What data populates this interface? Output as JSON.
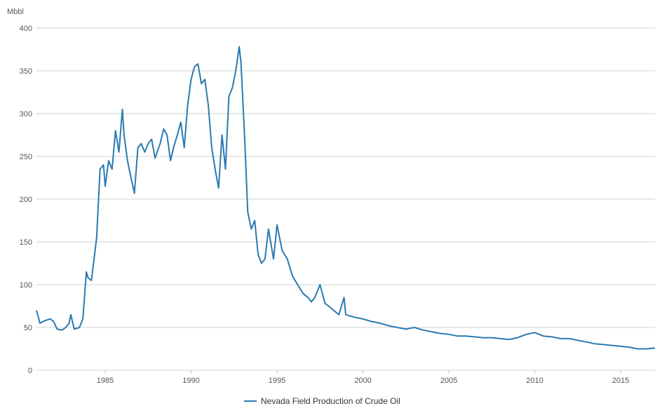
{
  "chart_data": {
    "type": "line",
    "title": "",
    "xlabel": "",
    "ylabel": "Mbbl",
    "xlim": [
      1981,
      2017
    ],
    "ylim": [
      0,
      400
    ],
    "grid": true,
    "legend_position": "bottom-center",
    "x_ticks": [
      1985,
      1990,
      1995,
      2000,
      2005,
      2010,
      2015
    ],
    "y_ticks": [
      0,
      50,
      100,
      150,
      200,
      250,
      300,
      350,
      400
    ],
    "series": [
      {
        "name": "Nevada Field Production of Crude Oil",
        "color": "#2a7ab0",
        "x": [
          1981.0,
          1981.2,
          1981.5,
          1981.8,
          1982.0,
          1982.2,
          1982.5,
          1982.7,
          1982.9,
          1983.0,
          1983.2,
          1983.5,
          1983.7,
          1983.9,
          1984.0,
          1984.2,
          1984.5,
          1984.7,
          1984.9,
          1985.0,
          1985.2,
          1985.4,
          1985.6,
          1985.8,
          1986.0,
          1986.1,
          1986.3,
          1986.5,
          1986.7,
          1986.9,
          1987.1,
          1987.3,
          1987.5,
          1987.7,
          1987.9,
          1988.2,
          1988.4,
          1988.6,
          1988.8,
          1989.0,
          1989.2,
          1989.4,
          1989.6,
          1989.8,
          1990.0,
          1990.2,
          1990.4,
          1990.6,
          1990.8,
          1991.0,
          1991.2,
          1991.4,
          1991.6,
          1991.8,
          1992.0,
          1992.2,
          1992.4,
          1992.6,
          1992.8,
          1992.9,
          1993.1,
          1993.3,
          1993.5,
          1993.7,
          1993.9,
          1994.1,
          1994.3,
          1994.5,
          1994.8,
          1995.0,
          1995.3,
          1995.6,
          1995.9,
          1996.2,
          1996.5,
          1996.8,
          1997.0,
          1997.2,
          1997.5,
          1997.8,
          1998.0,
          1998.3,
          1998.6,
          1998.9,
          1999.0,
          1999.5,
          2000.0,
          2000.5,
          2001.0,
          2001.5,
          2002.0,
          2002.5,
          2003.0,
          2003.5,
          2004.0,
          2004.5,
          2005.0,
          2005.5,
          2006.0,
          2006.5,
          2007.0,
          2007.5,
          2008.0,
          2008.5,
          2009.0,
          2009.5,
          2010.0,
          2010.5,
          2011.0,
          2011.5,
          2012.0,
          2012.5,
          2013.0,
          2013.5,
          2014.0,
          2014.5,
          2015.0,
          2015.5,
          2016.0,
          2016.5,
          2017.0
        ],
        "y": [
          70,
          55,
          58,
          60,
          57,
          48,
          47,
          50,
          55,
          65,
          48,
          50,
          60,
          115,
          108,
          105,
          155,
          235,
          240,
          215,
          245,
          235,
          280,
          255,
          305,
          275,
          245,
          225,
          207,
          260,
          265,
          255,
          265,
          270,
          248,
          265,
          282,
          275,
          245,
          262,
          275,
          290,
          260,
          310,
          340,
          355,
          358,
          335,
          340,
          310,
          260,
          235,
          213,
          275,
          235,
          320,
          330,
          350,
          378,
          360,
          280,
          185,
          165,
          175,
          135,
          125,
          130,
          165,
          130,
          170,
          140,
          130,
          110,
          100,
          90,
          85,
          80,
          85,
          100,
          78,
          75,
          70,
          65,
          85,
          65,
          62,
          60,
          57,
          55,
          52,
          50,
          48,
          50,
          47,
          45,
          43,
          42,
          40,
          40,
          39,
          38,
          38,
          37,
          36,
          38,
          42,
          44,
          40,
          39,
          37,
          37,
          35,
          33,
          31,
          30,
          29,
          28,
          27,
          25,
          25,
          26
        ]
      }
    ]
  }
}
